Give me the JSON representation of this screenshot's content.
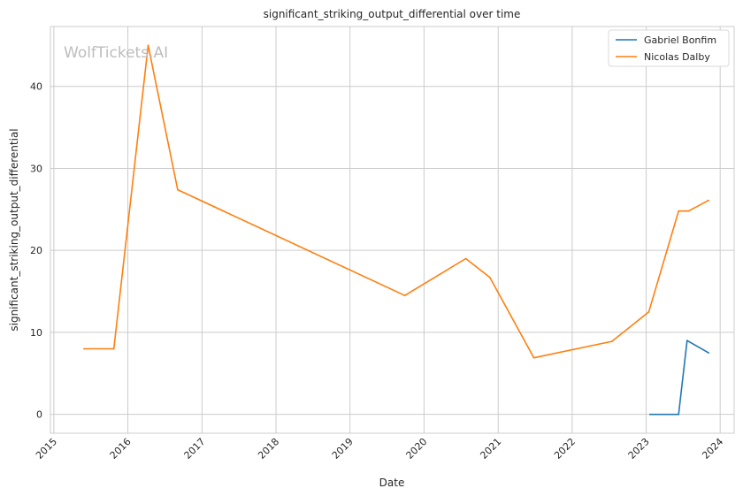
{
  "chart_data": {
    "type": "line",
    "title": "significant_striking_output_differential over time",
    "xlabel": "Date",
    "ylabel": "significant_striking_output_differential",
    "watermark": "WolfTickets.AI",
    "x_ticks": [
      "2015",
      "2016",
      "2017",
      "2018",
      "2019",
      "2020",
      "2021",
      "2022",
      "2023",
      "2024"
    ],
    "y_ticks": [
      0,
      10,
      20,
      30,
      40
    ],
    "xlim": [
      "2014-12-15",
      "2024-03-10"
    ],
    "ylim": [
      -2.3,
      47.3
    ],
    "grid": true,
    "legend_position": "top-right",
    "series": [
      {
        "name": "Gabriel Bonfim",
        "color": "#1f77b4",
        "points": [
          [
            "2023-01-20",
            0.0
          ],
          [
            "2023-06-10",
            0.0
          ],
          [
            "2023-07-22",
            9.0
          ],
          [
            "2023-11-05",
            7.5
          ]
        ]
      },
      {
        "name": "Nicolas Dalby",
        "color": "#ff7f0e",
        "points": [
          [
            "2015-05-30",
            8.0
          ],
          [
            "2015-10-24",
            8.0
          ],
          [
            "2016-04-10",
            45.0
          ],
          [
            "2016-09-03",
            27.4
          ],
          [
            "2019-09-28",
            14.5
          ],
          [
            "2020-07-25",
            19.0
          ],
          [
            "2020-11-21",
            16.7
          ],
          [
            "2021-06-26",
            6.9
          ],
          [
            "2022-07-16",
            8.9
          ],
          [
            "2023-01-14",
            12.5
          ],
          [
            "2023-06-10",
            24.8
          ],
          [
            "2023-07-29",
            24.8
          ],
          [
            "2023-11-05",
            26.1
          ]
        ]
      }
    ]
  }
}
